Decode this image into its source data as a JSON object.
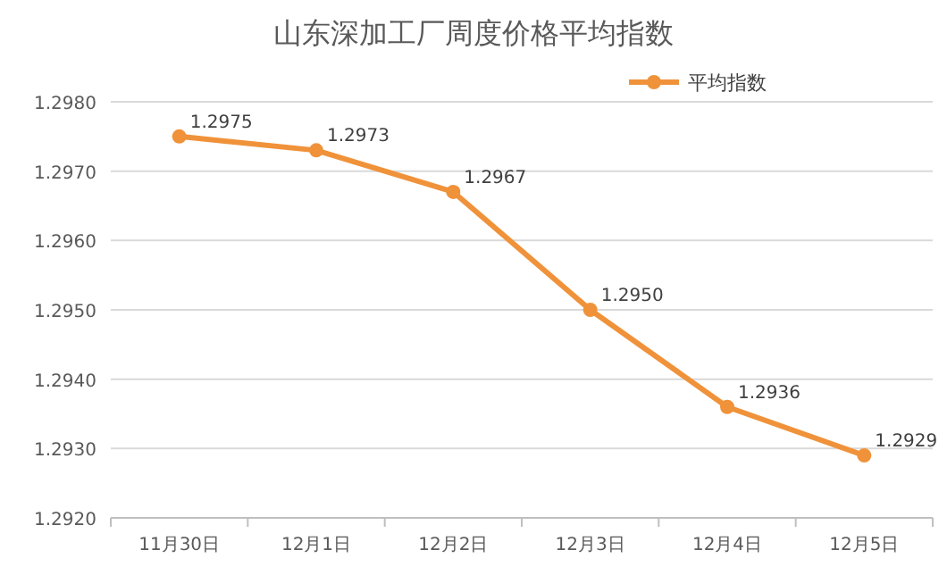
{
  "chart_data": {
    "type": "line",
    "title": "山东深加工厂周度价格平均指数",
    "categories": [
      "11月30日",
      "12月1日",
      "12月2日",
      "12月3日",
      "12月4日",
      "12月5日"
    ],
    "series": [
      {
        "name": "平均指数",
        "color": "#f0923a",
        "values": [
          1.2975,
          1.2973,
          1.2967,
          1.295,
          1.2936,
          1.2929
        ],
        "value_labels": [
          "1.2975",
          "1.2973",
          "1.2967",
          "1.2950",
          "1.2936",
          "1.2929"
        ]
      }
    ],
    "ylim": [
      1.292,
      1.298
    ],
    "yticks": [
      {
        "value": 1.292,
        "label": "1.2920"
      },
      {
        "value": 1.293,
        "label": "1.2930"
      },
      {
        "value": 1.294,
        "label": "1.2940"
      },
      {
        "value": 1.295,
        "label": "1.2950"
      },
      {
        "value": 1.296,
        "label": "1.2960"
      },
      {
        "value": 1.297,
        "label": "1.2970"
      },
      {
        "value": 1.298,
        "label": "1.2980"
      }
    ],
    "grid": "y",
    "legend": "top right",
    "marker": "circle",
    "line_style": "solid"
  }
}
